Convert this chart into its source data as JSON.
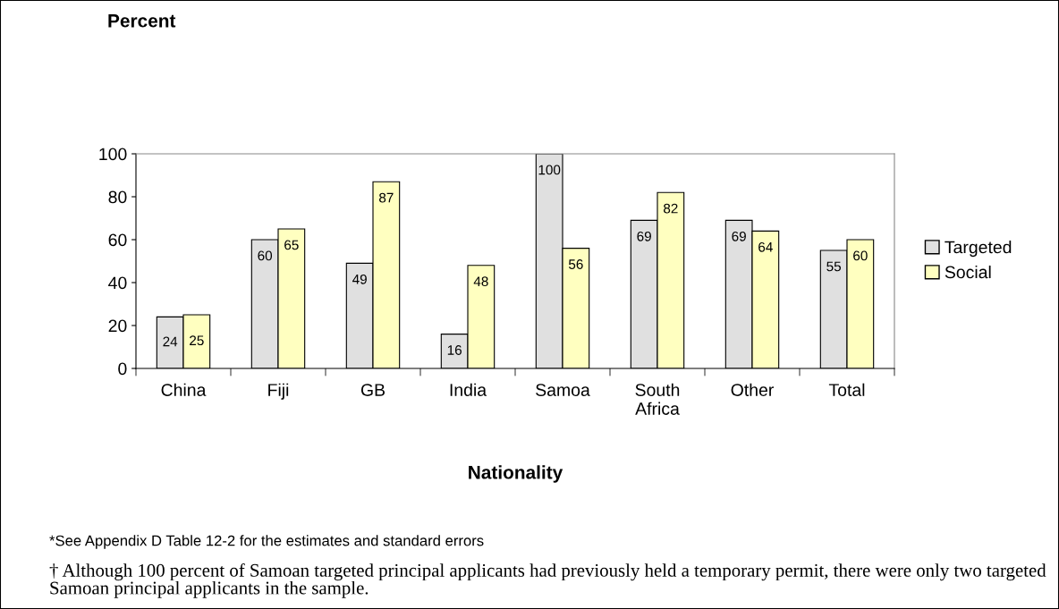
{
  "chart_data": {
    "type": "bar",
    "xlabel": "Nationality",
    "categories": [
      "China",
      "Fiji",
      "GB",
      "India",
      "Samoa",
      "South\nAfrica",
      "Other",
      "Total"
    ],
    "series": [
      {
        "name": "Targeted",
        "color": "#e0e0e0",
        "values": [
          24,
          60,
          49,
          16,
          100,
          69,
          69,
          55
        ]
      },
      {
        "name": "Social",
        "color": "#ffffc0",
        "values": [
          25,
          65,
          87,
          48,
          56,
          82,
          64,
          60
        ]
      }
    ],
    "ylim": [
      0,
      100
    ],
    "yticks": [
      0,
      20,
      40,
      60,
      80,
      100
    ],
    "data_labels": true,
    "legend": "right",
    "grid": false,
    "annotations": [
      "Percent",
      "*See Appendix D Table 12-2 for the estimates and standard errors",
      "† Although 100 percent of Samoan targeted principal applicants had previously held a temporary permit, there were only two targeted Samoan principal applicants in the sample."
    ]
  }
}
